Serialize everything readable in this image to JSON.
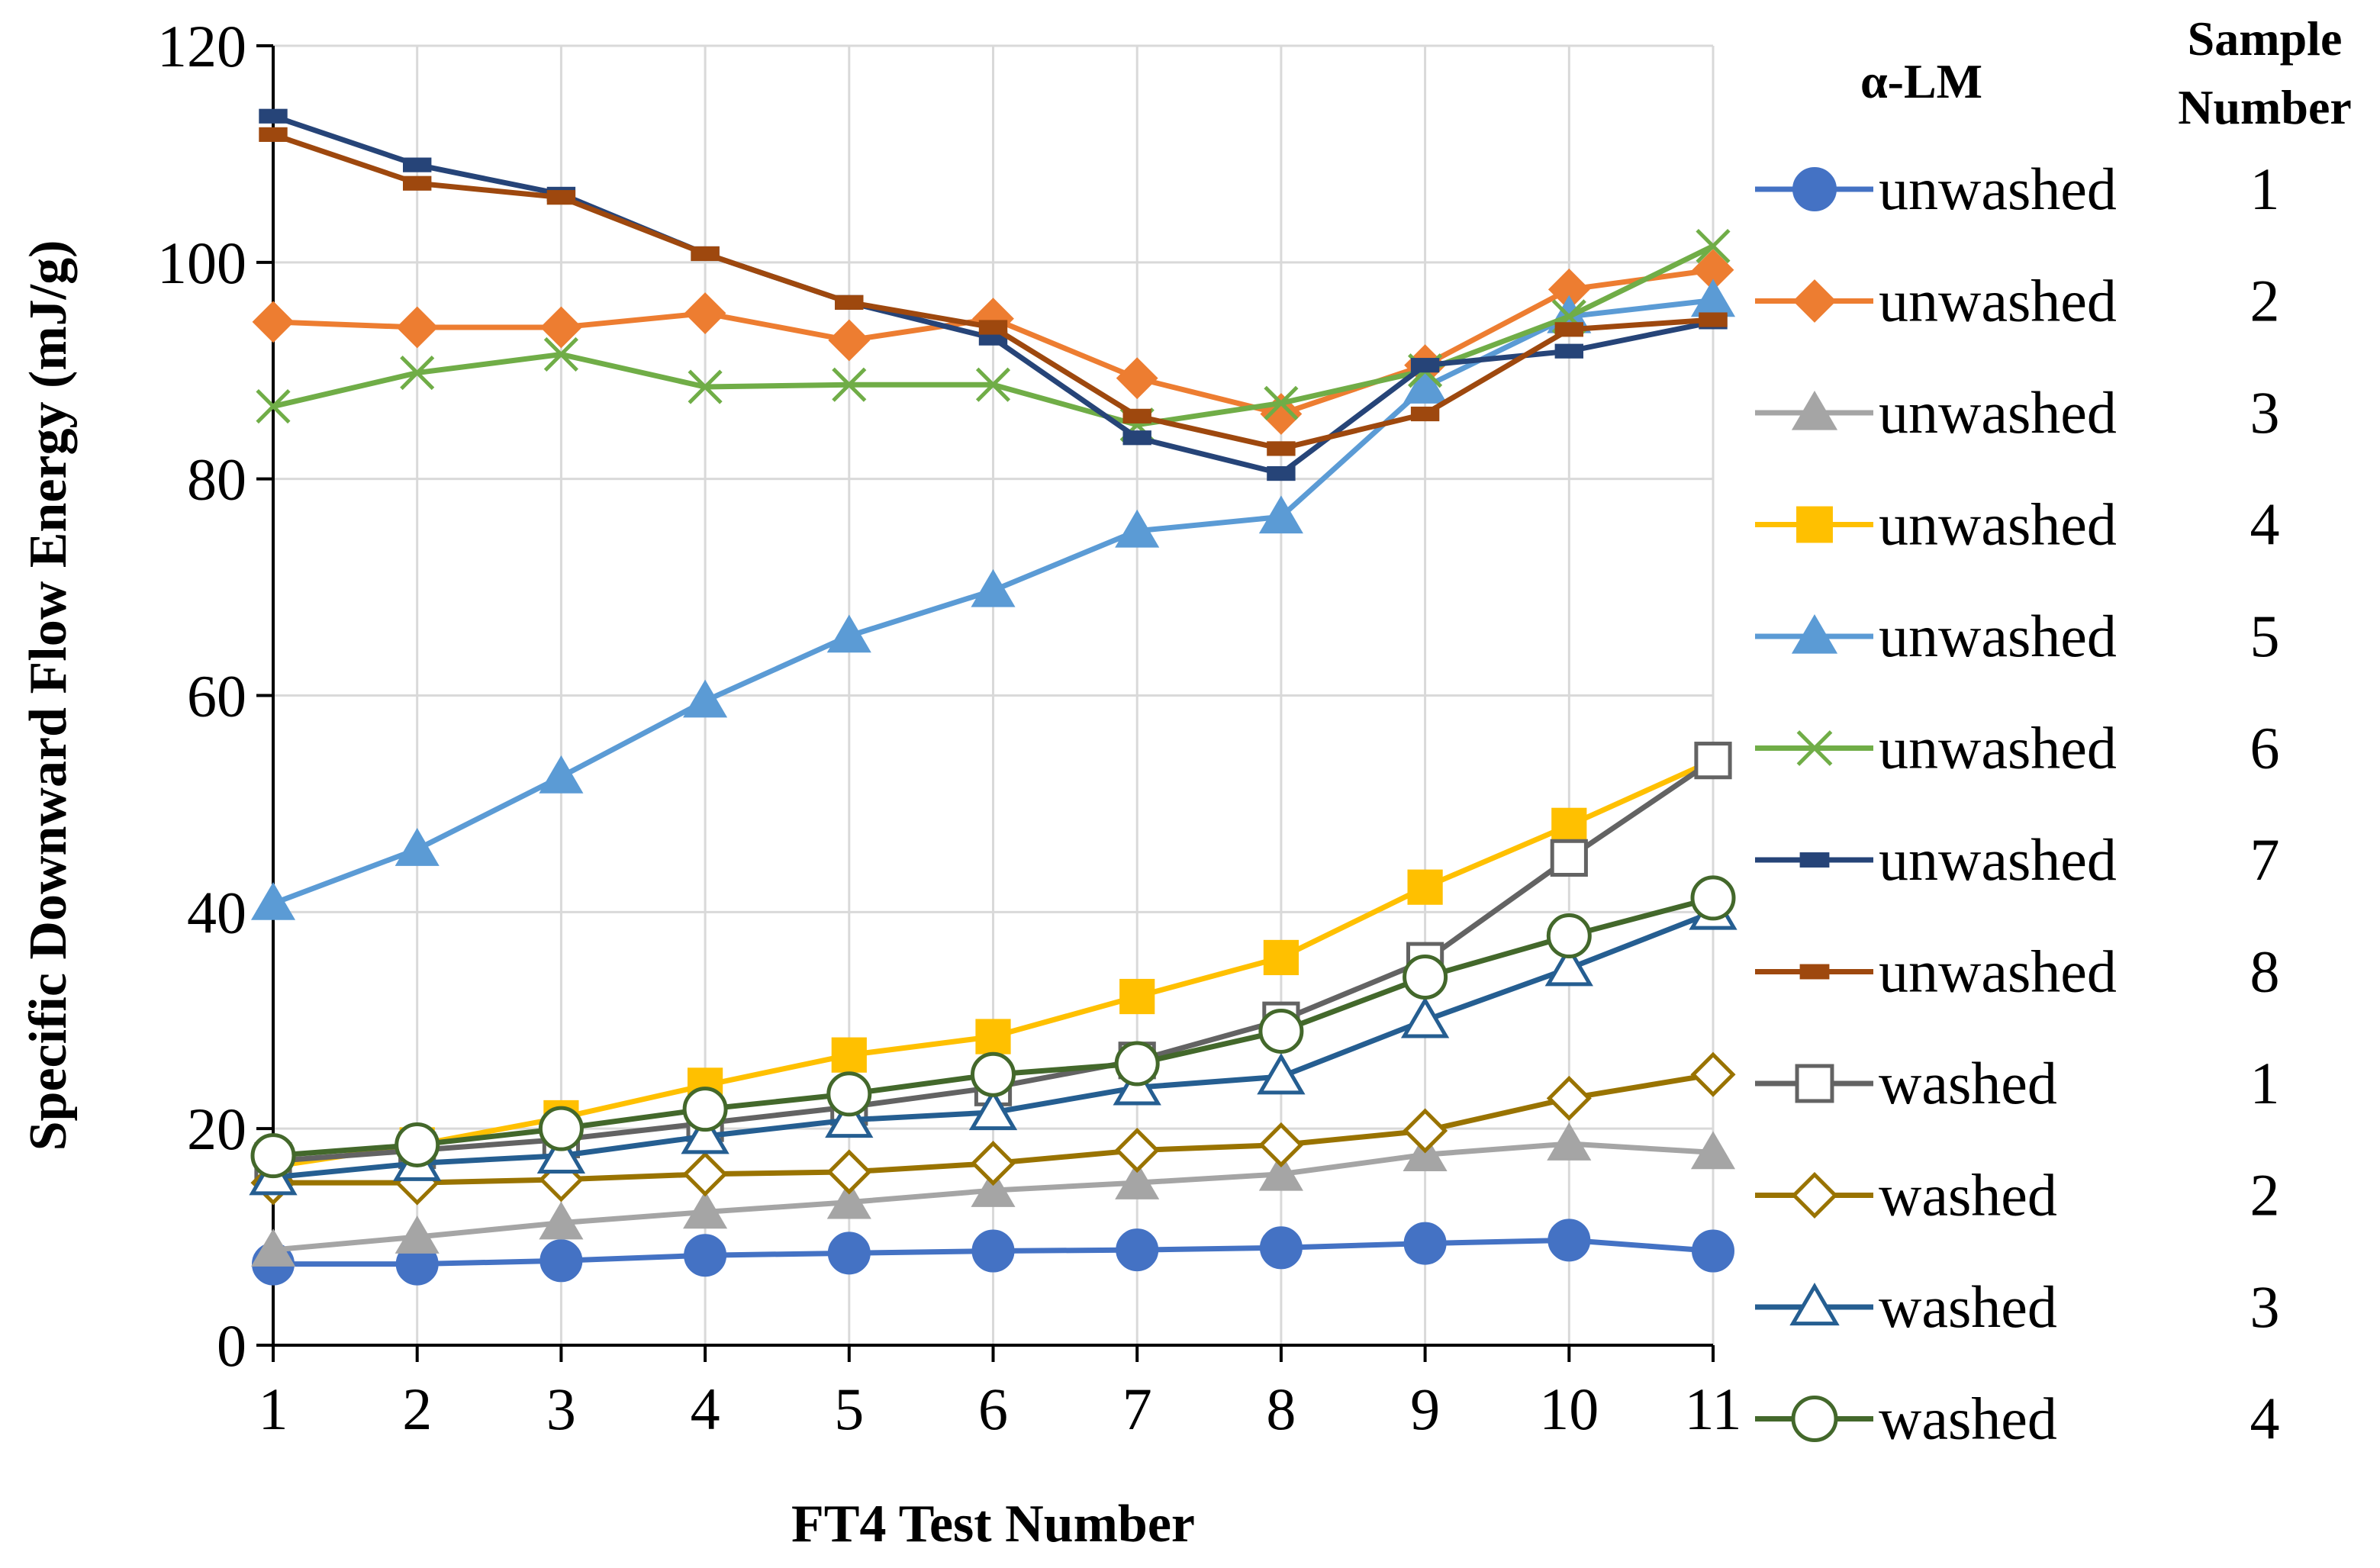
{
  "chart_data": {
    "type": "line",
    "title": "",
    "xlabel": "FT4 Test Number",
    "ylabel": "Specific Downward Flow Energy (mJ/g)",
    "x": [
      1,
      2,
      3,
      4,
      5,
      6,
      7,
      8,
      9,
      10,
      11
    ],
    "xlim": [
      1,
      11
    ],
    "ylim": [
      0,
      120
    ],
    "yticks": [
      0,
      20,
      40,
      60,
      80,
      100,
      120
    ],
    "grid": true,
    "legend_position": "right",
    "legend_header": {
      "group": "α-LM",
      "sample_line1": "Sample",
      "sample_line2": "Number"
    },
    "series": [
      {
        "name": "unwashed",
        "sample": "1",
        "color": "#4472C4",
        "marker": "circle",
        "filled": true,
        "values": [
          7.5,
          7.5,
          7.8,
          8.3,
          8.5,
          8.7,
          8.8,
          9.0,
          9.4,
          9.7,
          8.7
        ]
      },
      {
        "name": "unwashed",
        "sample": "2",
        "color": "#ED7D31",
        "marker": "diamond",
        "filled": true,
        "values": [
          94.5,
          94.0,
          94.0,
          95.3,
          92.8,
          94.8,
          89.3,
          86.0,
          90.5,
          97.5,
          99.3
        ]
      },
      {
        "name": "unwashed",
        "sample": "3",
        "color": "#A5A5A5",
        "marker": "triangle",
        "filled": true,
        "values": [
          8.8,
          10.0,
          11.3,
          12.3,
          13.2,
          14.3,
          15.0,
          15.8,
          17.6,
          18.6,
          17.8
        ]
      },
      {
        "name": "unwashed",
        "sample": "4",
        "color": "#FFC000",
        "marker": "square",
        "filled": true,
        "values": [
          16.5,
          18.5,
          21.0,
          24.0,
          26.8,
          28.5,
          32.2,
          35.8,
          42.3,
          48.0,
          54.0
        ]
      },
      {
        "name": "unwashed",
        "sample": "5",
        "color": "#5B9BD5",
        "marker": "triangle",
        "filled": true,
        "values": [
          40.8,
          45.8,
          52.5,
          59.5,
          65.5,
          69.7,
          75.2,
          76.5,
          88.5,
          95.0,
          96.5
        ]
      },
      {
        "name": "unwashed",
        "sample": "6",
        "color": "#70AD47",
        "marker": "x",
        "filled": false,
        "values": [
          86.7,
          89.8,
          91.5,
          88.5,
          88.7,
          88.7,
          85.0,
          87.0,
          90.0,
          95.0,
          101.5
        ]
      },
      {
        "name": "unwashed",
        "sample": "7",
        "color": "#264478",
        "marker": "dash",
        "filled": true,
        "values": [
          113.5,
          109.0,
          106.3,
          100.8,
          96.3,
          93.0,
          83.8,
          80.5,
          90.5,
          91.8,
          94.5
        ]
      },
      {
        "name": "unwashed",
        "sample": "8",
        "color": "#9E480E",
        "marker": "dash",
        "filled": true,
        "values": [
          111.8,
          107.3,
          106.0,
          100.8,
          96.3,
          94.0,
          85.8,
          82.8,
          86.0,
          93.8,
          94.7
        ]
      },
      {
        "name": "washed",
        "sample": "1",
        "color": "#636363",
        "marker": "square",
        "filled": false,
        "values": [
          17.0,
          18.0,
          19.0,
          20.5,
          22.0,
          23.8,
          26.3,
          30.0,
          35.5,
          45.0,
          54.0
        ]
      },
      {
        "name": "washed",
        "sample": "2",
        "color": "#997300",
        "marker": "diamond",
        "filled": false,
        "values": [
          15.0,
          15.0,
          15.3,
          15.8,
          16.0,
          16.8,
          18.0,
          18.5,
          19.8,
          22.8,
          25.0
        ]
      },
      {
        "name": "washed",
        "sample": "3",
        "color": "#255E91",
        "marker": "triangle",
        "filled": false,
        "values": [
          15.5,
          16.8,
          17.5,
          19.3,
          20.8,
          21.5,
          23.8,
          24.8,
          30.0,
          34.8,
          40.0
        ]
      },
      {
        "name": "washed",
        "sample": "4",
        "color": "#43682B",
        "marker": "circle",
        "filled": false,
        "values": [
          17.5,
          18.5,
          20.0,
          21.8,
          23.2,
          25.0,
          26.0,
          29.0,
          34.0,
          37.8,
          41.3
        ]
      }
    ]
  }
}
